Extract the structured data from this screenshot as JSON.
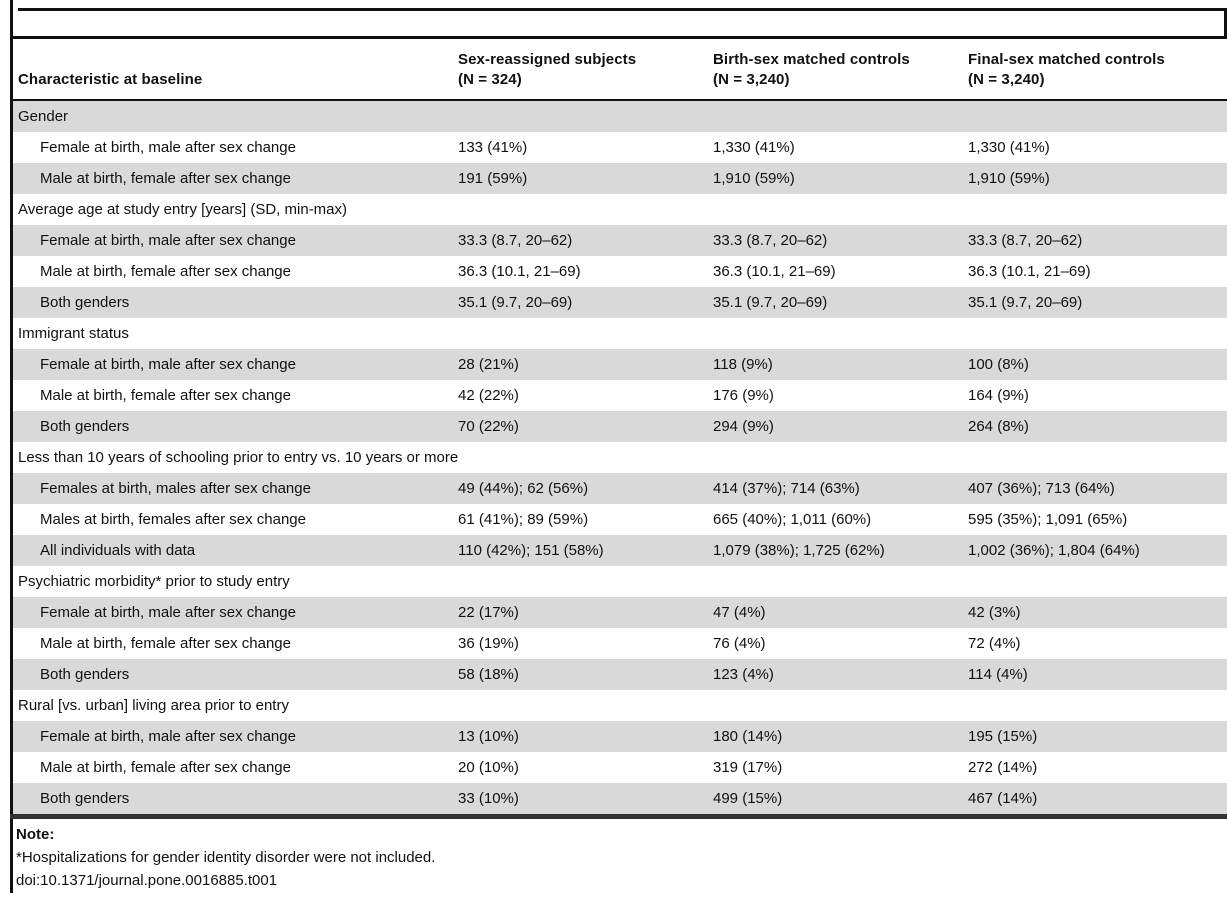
{
  "colors": {
    "row_shade": "#d9d9d9",
    "rule": "#111111",
    "bottom_rule": "#333333",
    "text": "#111111"
  },
  "table": {
    "columns": {
      "characteristic": "Characteristic at baseline",
      "col2_line1": "Sex-reassigned subjects",
      "col2_line2": "(N = 324)",
      "col3_line1": "Birth-sex matched controls",
      "col3_line2": "(N = 3,240)",
      "col4_line1": "Final-sex matched controls",
      "col4_line2": "(N = 3,240)"
    },
    "sections": [
      {
        "header": "Gender",
        "rows": [
          {
            "label": "Female at birth, male after sex change",
            "values": [
              "133 (41%)",
              "1,330 (41%)",
              "1,330 (41%)"
            ]
          },
          {
            "label": "Male at birth, female after sex change",
            "values": [
              "191 (59%)",
              "1,910 (59%)",
              "1,910 (59%)"
            ]
          }
        ]
      },
      {
        "header": "Average age at study entry [years] (SD, min-max)",
        "rows": [
          {
            "label": "Female at birth, male after sex change",
            "values": [
              "33.3 (8.7, 20–62)",
              "33.3 (8.7, 20–62)",
              "33.3 (8.7, 20–62)"
            ]
          },
          {
            "label": "Male at birth, female after sex change",
            "values": [
              "36.3 (10.1, 21–69)",
              "36.3 (10.1, 21–69)",
              "36.3 (10.1, 21–69)"
            ]
          },
          {
            "label": "Both genders",
            "values": [
              "35.1 (9.7, 20–69)",
              "35.1 (9.7, 20–69)",
              "35.1 (9.7, 20–69)"
            ]
          }
        ]
      },
      {
        "header": "Immigrant status",
        "rows": [
          {
            "label": "Female at birth, male after sex change",
            "values": [
              "28 (21%)",
              "118 (9%)",
              "100 (8%)"
            ]
          },
          {
            "label": "Male at birth, female after sex change",
            "values": [
              "42 (22%)",
              "176 (9%)",
              "164 (9%)"
            ]
          },
          {
            "label": "Both genders",
            "values": [
              "70 (22%)",
              "294 (9%)",
              "264 (8%)"
            ]
          }
        ]
      },
      {
        "header": "Less than 10 years of schooling prior to entry vs. 10 years or more",
        "rows": [
          {
            "label": "Females at birth, males after sex change",
            "values": [
              "49 (44%); 62 (56%)",
              "414 (37%); 714 (63%)",
              "407 (36%); 713 (64%)"
            ]
          },
          {
            "label": "Males at birth, females after sex change",
            "values": [
              "61 (41%); 89 (59%)",
              "665 (40%); 1,011 (60%)",
              "595 (35%); 1,091 (65%)"
            ]
          },
          {
            "label": "All individuals with data",
            "values": [
              "110 (42%); 151 (58%)",
              "1,079 (38%); 1,725 (62%)",
              "1,002 (36%); 1,804 (64%)"
            ]
          }
        ]
      },
      {
        "header": "Psychiatric morbidity* prior to study entry",
        "rows": [
          {
            "label": "Female at birth, male after sex change",
            "values": [
              "22 (17%)",
              "47 (4%)",
              "42 (3%)"
            ]
          },
          {
            "label": "Male at birth, female after sex change",
            "values": [
              "36 (19%)",
              "76 (4%)",
              "72 (4%)"
            ]
          },
          {
            "label": "Both genders",
            "values": [
              "58 (18%)",
              "123 (4%)",
              "114 (4%)"
            ]
          }
        ]
      },
      {
        "header": "Rural [vs. urban] living area prior to entry",
        "rows": [
          {
            "label": "Female at birth, male after sex change",
            "values": [
              "13 (10%)",
              "180 (14%)",
              "195 (15%)"
            ]
          },
          {
            "label": "Male at birth, female after sex change",
            "values": [
              "20 (10%)",
              "319 (17%)",
              "272 (14%)"
            ]
          },
          {
            "label": "Both genders",
            "values": [
              "33 (10%)",
              "499 (15%)",
              "467 (14%)"
            ]
          }
        ]
      }
    ]
  },
  "note": {
    "title": "Note:",
    "line1": "*Hospitalizations for gender identity disorder were not included.",
    "line2": "doi:10.1371/journal.pone.0016885.t001"
  }
}
